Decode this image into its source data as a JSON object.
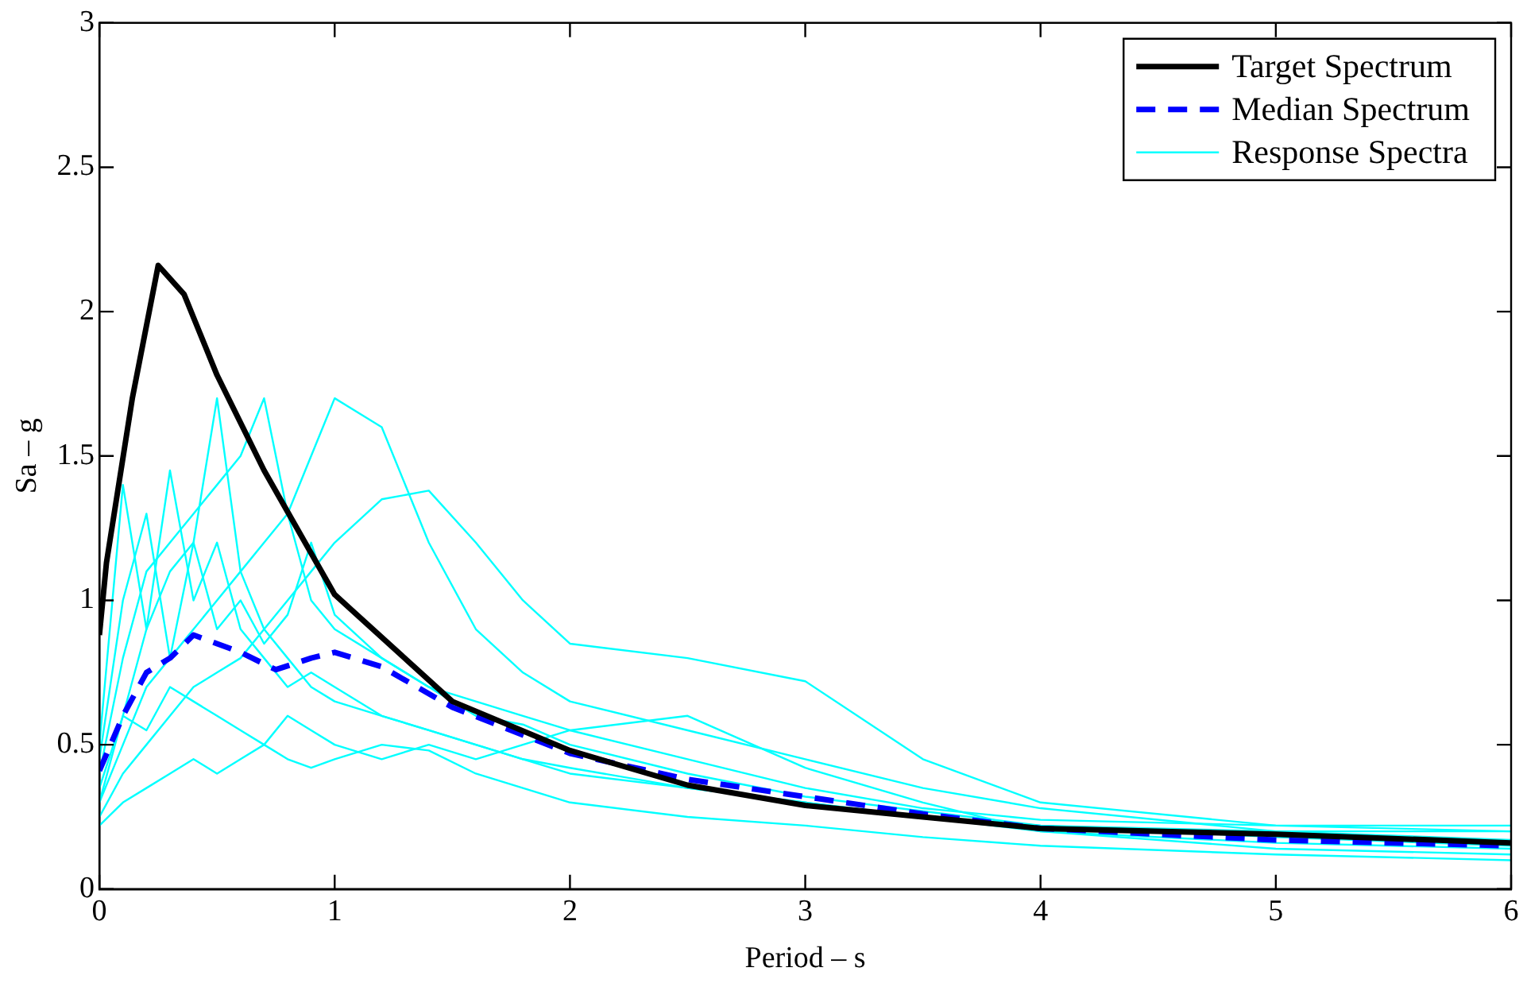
{
  "chart_data": {
    "type": "line",
    "xlabel": "Period – s",
    "ylabel": "Sa – g",
    "xlim": [
      0,
      6
    ],
    "xticks": [
      0,
      1,
      2,
      3,
      4,
      5,
      6
    ],
    "ylim": [
      0,
      3
    ],
    "yticks": [
      0,
      0.5,
      1,
      1.5,
      2,
      2.5,
      3
    ],
    "grid": false,
    "legend": "top right",
    "marker": "none",
    "series": [
      {
        "name": "Target Spectrum",
        "color": "#000000",
        "line_style": "solid",
        "x": [
          0,
          0.03,
          0.14,
          0.25,
          0.36,
          0.5,
          0.7,
          1.0,
          1.5,
          2.0,
          2.5,
          3.0,
          3.5,
          4.0,
          5.0,
          6.0
        ],
        "values": [
          0.88,
          1.13,
          1.7,
          2.16,
          2.06,
          1.78,
          1.45,
          1.02,
          0.65,
          0.48,
          0.36,
          0.29,
          0.25,
          0.21,
          0.19,
          0.16
        ]
      },
      {
        "name": "Median Spectrum",
        "color": "#0000ff",
        "line_style": "dashed",
        "x": [
          0,
          0.1,
          0.2,
          0.3,
          0.4,
          0.5,
          0.6,
          0.75,
          0.9,
          1.0,
          1.2,
          1.5,
          2.0,
          2.5,
          3.0,
          3.5,
          4.0,
          4.5,
          5.0,
          6.0
        ],
        "values": [
          0.41,
          0.6,
          0.75,
          0.8,
          0.88,
          0.85,
          0.82,
          0.76,
          0.8,
          0.82,
          0.77,
          0.63,
          0.47,
          0.38,
          0.32,
          0.26,
          0.21,
          0.19,
          0.17,
          0.15
        ]
      },
      {
        "name": "Response Spectra",
        "color": "#00ffff",
        "line_style": "solid",
        "x": [
          0,
          0.1,
          0.2,
          0.3,
          0.4,
          0.5,
          0.6,
          0.7,
          0.8,
          0.9,
          1.0,
          1.2,
          1.4,
          1.6,
          1.8,
          2.0,
          2.5,
          3.0,
          3.5,
          4,
          5,
          6
        ],
        "values": [
          0.35,
          0.6,
          0.9,
          1.1,
          1.2,
          1.7,
          1.1,
          0.9,
          0.8,
          0.7,
          0.65,
          0.6,
          0.55,
          0.5,
          0.45,
          0.42,
          0.35,
          0.3,
          0.25,
          0.2,
          0.16,
          0.14
        ]
      },
      {
        "color": "#00ffff",
        "line_style": "solid",
        "x": [
          0,
          0.1,
          0.2,
          0.3,
          0.4,
          0.5,
          0.6,
          0.7,
          0.8,
          0.9,
          1.0,
          1.2,
          1.4,
          1.6,
          1.8,
          2.0,
          2.5,
          3.0,
          3.5,
          4,
          5,
          6
        ],
        "values": [
          0.3,
          0.5,
          0.7,
          0.8,
          0.9,
          1.0,
          1.1,
          1.2,
          1.3,
          1.5,
          1.7,
          1.6,
          1.2,
          0.9,
          0.75,
          0.65,
          0.55,
          0.45,
          0.35,
          0.28,
          0.2,
          0.17
        ]
      },
      {
        "color": "#00ffff",
        "line_style": "solid",
        "x": [
          0,
          0.1,
          0.2,
          0.3,
          0.4,
          0.5,
          0.6,
          0.7,
          0.8,
          0.9,
          1.0,
          1.2,
          1.4,
          1.6,
          1.8,
          2.0,
          2.5,
          3.0,
          3.5,
          4,
          5,
          6
        ],
        "values": [
          0.4,
          0.8,
          1.1,
          1.2,
          1.3,
          1.4,
          1.5,
          1.7,
          1.3,
          1.0,
          0.9,
          0.8,
          0.7,
          0.6,
          0.57,
          0.5,
          0.4,
          0.32,
          0.27,
          0.22,
          0.18,
          0.15
        ]
      },
      {
        "color": "#00ffff",
        "line_style": "solid",
        "x": [
          0,
          0.1,
          0.2,
          0.3,
          0.4,
          0.5,
          0.6,
          0.7,
          0.8,
          0.9,
          1.0,
          1.2,
          1.4,
          1.6,
          1.8,
          2.0,
          2.5,
          3.0,
          3.5,
          4,
          5,
          6
        ],
        "values": [
          0.25,
          0.4,
          0.5,
          0.6,
          0.7,
          0.75,
          0.8,
          0.9,
          1.0,
          1.1,
          1.2,
          1.35,
          1.38,
          1.2,
          1.0,
          0.85,
          0.8,
          0.72,
          0.45,
          0.3,
          0.22,
          0.2
        ]
      },
      {
        "color": "#00ffff",
        "line_style": "solid",
        "x": [
          0,
          0.1,
          0.2,
          0.3,
          0.4,
          0.5,
          0.6,
          0.7,
          0.8,
          0.9,
          1.0,
          1.2,
          1.4,
          1.6,
          1.8,
          2.0,
          2.5,
          3.0,
          3.5,
          4,
          5,
          6
        ],
        "values": [
          0.22,
          0.3,
          0.35,
          0.4,
          0.45,
          0.4,
          0.45,
          0.5,
          0.45,
          0.42,
          0.45,
          0.5,
          0.48,
          0.4,
          0.35,
          0.3,
          0.25,
          0.22,
          0.18,
          0.15,
          0.12,
          0.1
        ]
      },
      {
        "color": "#00ffff",
        "line_style": "solid",
        "x": [
          0,
          0.1,
          0.2,
          0.3,
          0.4,
          0.5,
          0.6,
          0.7,
          0.8,
          0.9,
          1.0,
          1.2,
          1.4,
          1.6,
          1.8,
          2.0,
          2.5,
          3.0,
          3.5,
          4,
          5,
          6
        ],
        "values": [
          0.5,
          1.4,
          0.9,
          1.45,
          1.0,
          1.2,
          0.9,
          0.8,
          0.7,
          0.75,
          0.7,
          0.6,
          0.55,
          0.5,
          0.45,
          0.4,
          0.35,
          0.3,
          0.25,
          0.22,
          0.2,
          0.2
        ]
      },
      {
        "color": "#00ffff",
        "line_style": "solid",
        "x": [
          0,
          0.1,
          0.2,
          0.3,
          0.4,
          0.5,
          0.6,
          0.7,
          0.8,
          0.9,
          1.0,
          1.2,
          1.4,
          1.6,
          1.8,
          2.0,
          2.5,
          3.0,
          3.5,
          4,
          5,
          6
        ],
        "values": [
          0.45,
          1.0,
          1.3,
          0.8,
          1.2,
          0.9,
          1.0,
          0.85,
          0.95,
          1.2,
          0.95,
          0.8,
          0.7,
          0.65,
          0.6,
          0.55,
          0.45,
          0.35,
          0.28,
          0.24,
          0.22,
          0.22
        ]
      },
      {
        "color": "#00ffff",
        "line_style": "solid",
        "x": [
          0,
          0.1,
          0.2,
          0.3,
          0.4,
          0.5,
          0.6,
          0.7,
          0.8,
          0.9,
          1.0,
          1.2,
          1.4,
          1.6,
          1.8,
          2.0,
          2.5,
          3.0,
          3.5,
          4,
          5,
          6
        ],
        "values": [
          0.3,
          0.6,
          0.55,
          0.7,
          0.65,
          0.6,
          0.55,
          0.5,
          0.6,
          0.55,
          0.5,
          0.45,
          0.5,
          0.45,
          0.5,
          0.55,
          0.6,
          0.42,
          0.3,
          0.2,
          0.14,
          0.12
        ]
      }
    ]
  }
}
